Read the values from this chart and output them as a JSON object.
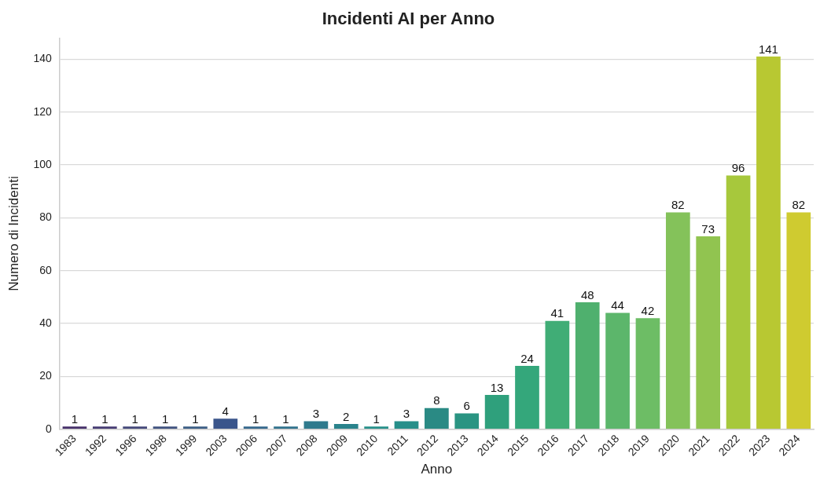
{
  "chart_data": {
    "type": "bar",
    "title": "Incidenti AI per Anno",
    "xlabel": "Anno",
    "ylabel": "Numero di Incidenti",
    "categories": [
      "1983",
      "1992",
      "1996",
      "1998",
      "1999",
      "2003",
      "2006",
      "2007",
      "2008",
      "2009",
      "2010",
      "2011",
      "2012",
      "2013",
      "2014",
      "2015",
      "2016",
      "2017",
      "2018",
      "2019",
      "2020",
      "2021",
      "2022",
      "2023",
      "2024"
    ],
    "values": [
      1,
      1,
      1,
      1,
      1,
      4,
      1,
      1,
      3,
      2,
      1,
      3,
      8,
      6,
      13,
      24,
      41,
      48,
      44,
      42,
      82,
      73,
      96,
      141,
      82
    ],
    "colors": [
      "#46306a",
      "#463c73",
      "#44487a",
      "#405380",
      "#3c5e85",
      "#3a558b",
      "#34688c",
      "#30728d",
      "#2f7a8d",
      "#2a838c",
      "#27908a",
      "#268f8a",
      "#2a8a84",
      "#2a9482",
      "#2fa07c",
      "#34a77b",
      "#40ad76",
      "#4fb06e",
      "#5cb66b",
      "#6dbd65",
      "#84c25a",
      "#91c450",
      "#a7c83c",
      "#b8c832",
      "#cfcb30"
    ],
    "ylim": [
      0,
      148
    ],
    "yticks": [
      0,
      20,
      40,
      60,
      80,
      100,
      120,
      140
    ],
    "grid": "y",
    "data_labels": true
  }
}
